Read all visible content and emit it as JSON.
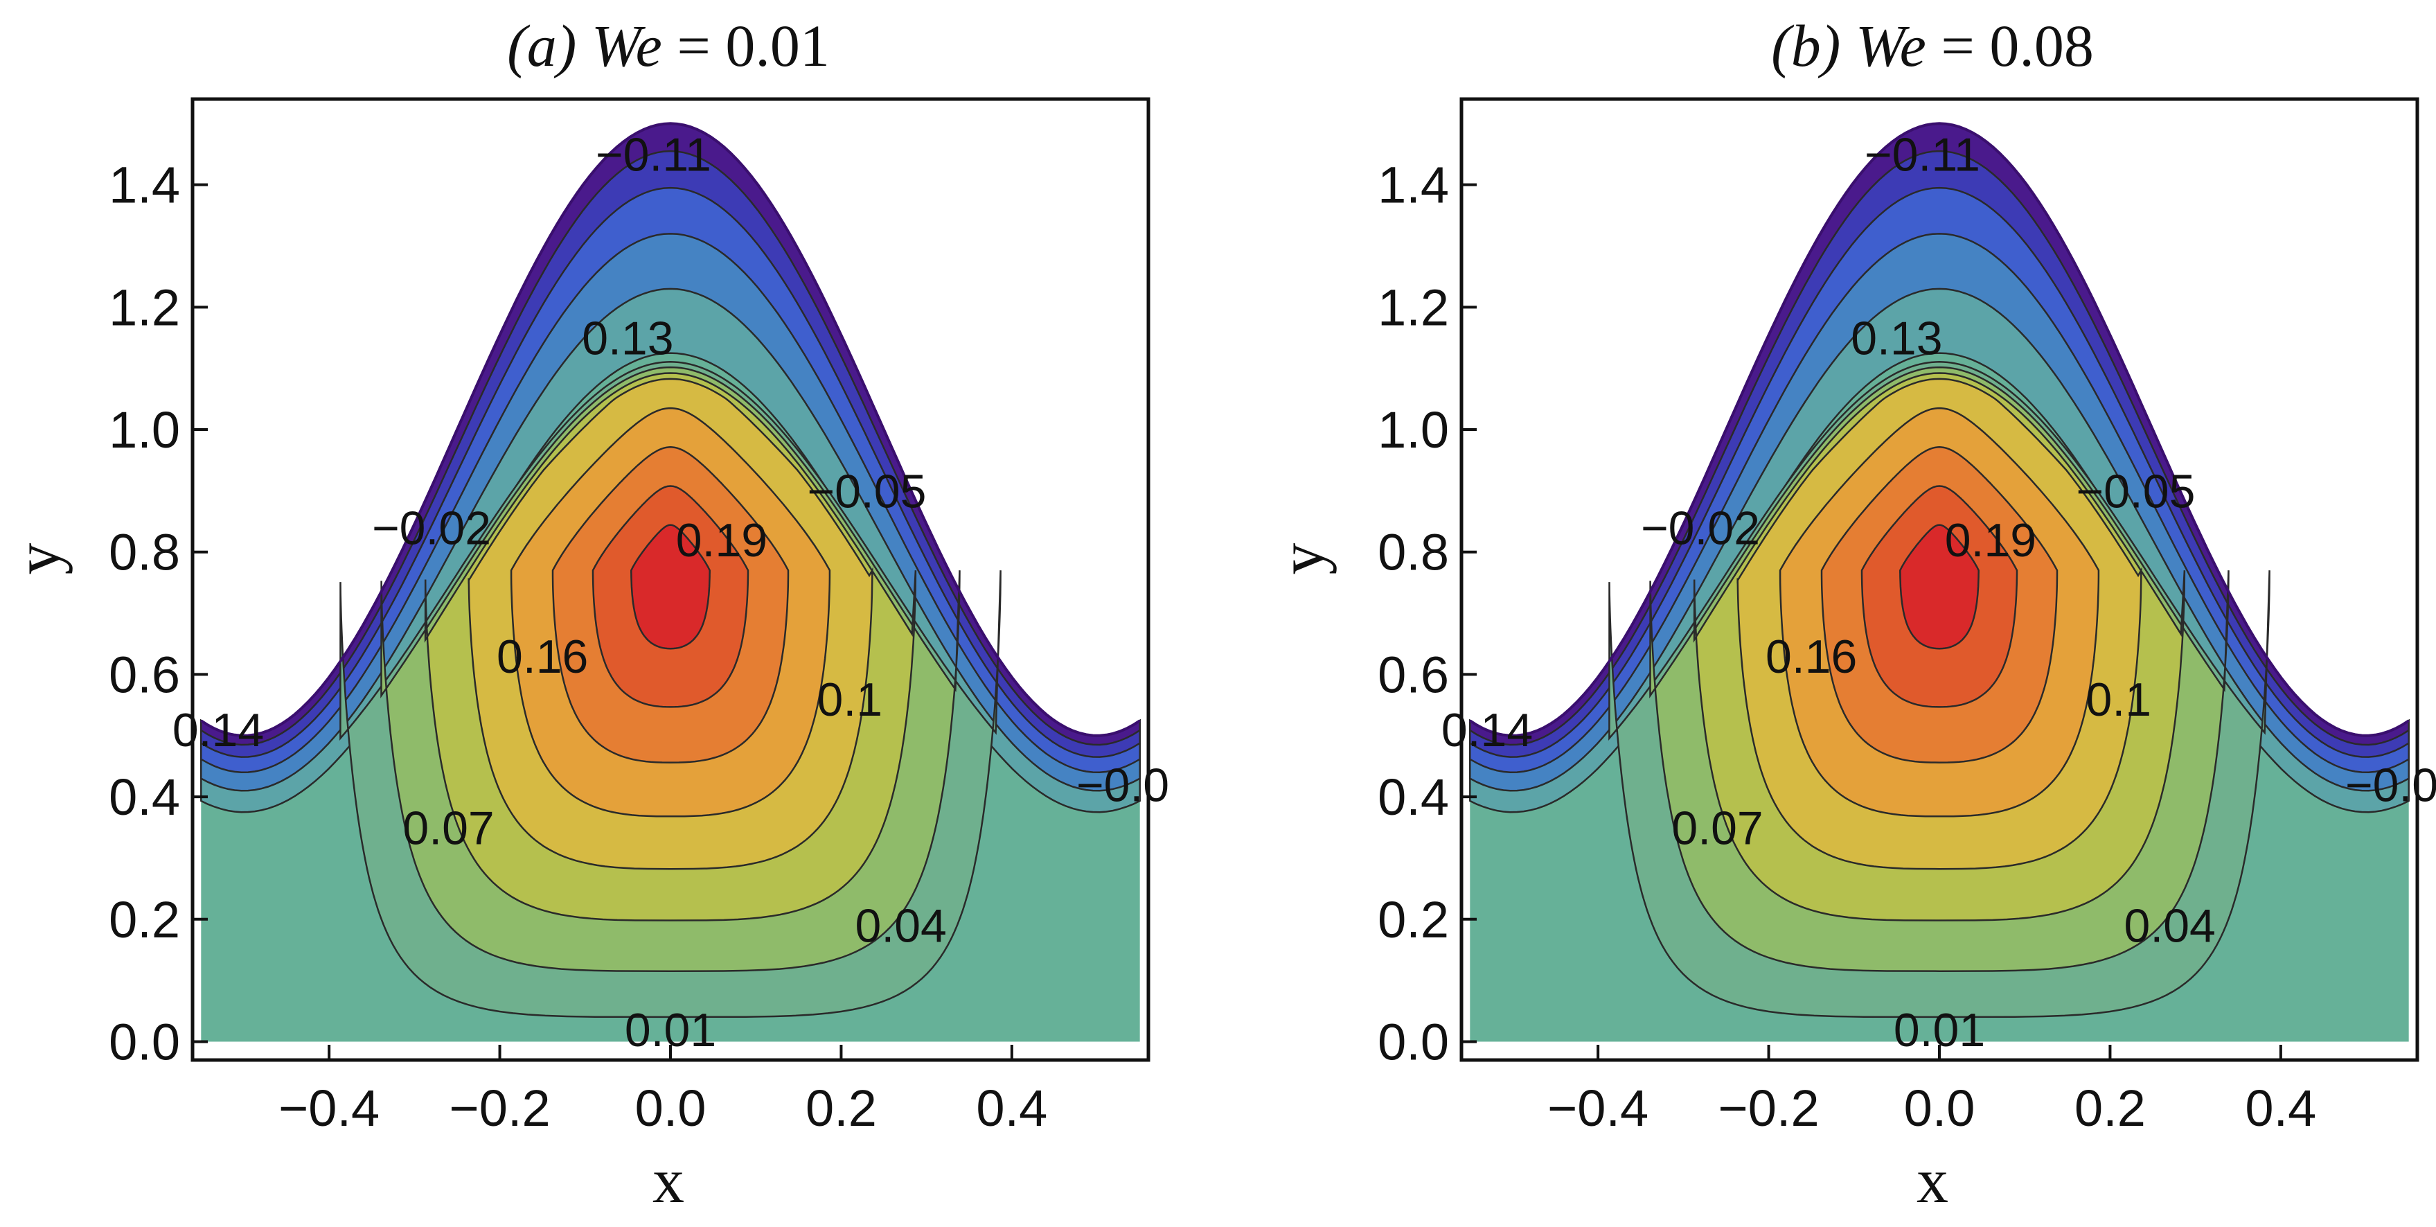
{
  "chart_data": [
    {
      "type": "contour",
      "panel": "(a)",
      "title": {
        "prefix": "(a)",
        "var": "We",
        "rest": " = 0.01"
      },
      "xlabel": "x",
      "ylabel": "y",
      "xlim": [
        -0.56,
        0.56
      ],
      "ylim": [
        -0.03,
        1.54
      ],
      "xticks": [
        "−0.4",
        "−0.2",
        "0.0",
        "0.2",
        "0.4"
      ],
      "xtick_values": [
        -0.4,
        -0.2,
        0.0,
        0.2,
        0.4
      ],
      "yticks": [
        "0.0",
        "0.2",
        "0.4",
        "0.6",
        "0.8",
        "1.0",
        "1.2",
        "1.4"
      ],
      "ytick_values": [
        0.0,
        0.2,
        0.4,
        0.6,
        0.8,
        1.0,
        1.2,
        1.4
      ],
      "boundary": {
        "peak_y": 1.5,
        "trough_y": 0.5,
        "x_range": [
          -0.55,
          0.55
        ]
      },
      "center": [
        0.0,
        0.77
      ],
      "contour_labels": [
        {
          "text": "−0.11",
          "x": -0.02,
          "y": 1.45
        },
        {
          "text": "0.13",
          "x": -0.05,
          "y": 1.15
        },
        {
          "text": "−0.05",
          "x": 0.23,
          "y": 0.9
        },
        {
          "text": "−0.02",
          "x": -0.28,
          "y": 0.84
        },
        {
          "text": "0.19",
          "x": 0.06,
          "y": 0.82
        },
        {
          "text": "0.16",
          "x": -0.15,
          "y": 0.63
        },
        {
          "text": "0.1",
          "x": 0.21,
          "y": 0.56
        },
        {
          "text": "0.14",
          "x": -0.53,
          "y": 0.51
        },
        {
          "text": "−0.0",
          "x": 0.53,
          "y": 0.42
        },
        {
          "text": "0.07",
          "x": -0.26,
          "y": 0.35
        },
        {
          "text": "0.04",
          "x": 0.27,
          "y": 0.19
        },
        {
          "text": "0.01",
          "x": 0.0,
          "y": 0.02
        }
      ]
    },
    {
      "type": "contour",
      "panel": "(b)",
      "title": {
        "prefix": "(b)",
        "var": "We",
        "rest": " = 0.08"
      },
      "xlabel": "x",
      "ylabel": "y",
      "xlim": [
        -0.56,
        0.56
      ],
      "ylim": [
        -0.03,
        1.54
      ],
      "xticks": [
        "−0.4",
        "−0.2",
        "0.0",
        "0.2",
        "0.4"
      ],
      "xtick_values": [
        -0.4,
        -0.2,
        0.0,
        0.2,
        0.4
      ],
      "yticks": [
        "0.0",
        "0.2",
        "0.4",
        "0.6",
        "0.8",
        "1.0",
        "1.2",
        "1.4"
      ],
      "ytick_values": [
        0.0,
        0.2,
        0.4,
        0.6,
        0.8,
        1.0,
        1.2,
        1.4
      ],
      "boundary": {
        "peak_y": 1.5,
        "trough_y": 0.5,
        "x_range": [
          -0.55,
          0.55
        ]
      },
      "center": [
        0.0,
        0.77
      ],
      "contour_labels": [
        {
          "text": "−0.11",
          "x": -0.02,
          "y": 1.45
        },
        {
          "text": "0.13",
          "x": -0.05,
          "y": 1.15
        },
        {
          "text": "−0.05",
          "x": 0.23,
          "y": 0.9
        },
        {
          "text": "−0.02",
          "x": -0.28,
          "y": 0.84
        },
        {
          "text": "0.19",
          "x": 0.06,
          "y": 0.82
        },
        {
          "text": "0.16",
          "x": -0.15,
          "y": 0.63
        },
        {
          "text": "0.1",
          "x": 0.21,
          "y": 0.56
        },
        {
          "text": "0.14",
          "x": -0.53,
          "y": 0.51
        },
        {
          "text": "−0.0",
          "x": 0.53,
          "y": 0.42
        },
        {
          "text": "0.07",
          "x": -0.26,
          "y": 0.35
        },
        {
          "text": "0.04",
          "x": 0.27,
          "y": 0.19
        },
        {
          "text": "0.01",
          "x": 0.0,
          "y": 0.02
        }
      ]
    }
  ],
  "colors": {
    "band_colors": [
      "#4a1a8c",
      "#3d3bb5",
      "#3f5fce",
      "#4583c3",
      "#5ca4a8",
      "#6fb08e",
      "#8fbb6a",
      "#b5c04e",
      "#d6ba43",
      "#e4a13a",
      "#e57e33",
      "#e05a2c",
      "#d9292a"
    ],
    "line": "#2a2a2a",
    "axes": "#111111"
  }
}
